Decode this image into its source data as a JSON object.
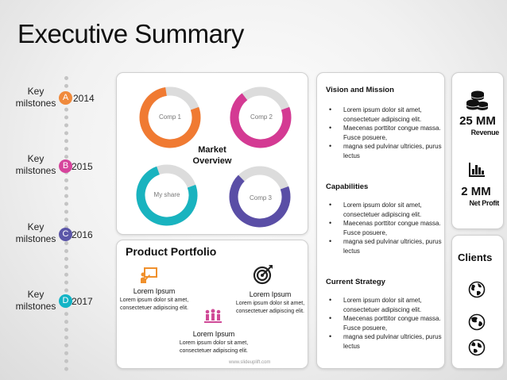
{
  "title": "Executive Summary",
  "milestones": [
    {
      "label": "Key milstones",
      "letter": "A",
      "year": "2014",
      "color": "#f08a3c"
    },
    {
      "label": "Key milstones",
      "letter": "B",
      "year": "2015",
      "color": "#d6449c"
    },
    {
      "label": "Key milstones",
      "letter": "C",
      "year": "2016",
      "color": "#5b56a8"
    },
    {
      "label": "Key milstones",
      "letter": "D",
      "year": "2017",
      "color": "#13b4c6"
    }
  ],
  "market": {
    "title": "Market Overview",
    "donuts": [
      {
        "label": "Comp 1",
        "color": "#f07a32",
        "share": 0.78
      },
      {
        "label": "Comp 2",
        "color": "#d43a93",
        "share": 0.7
      },
      {
        "label": "My share",
        "color": "#19b3bf",
        "share": 0.75
      },
      {
        "label": "Comp 3",
        "color": "#5a4ea6",
        "share": 0.68
      }
    ]
  },
  "portfolio": {
    "title": "Product Portfolio",
    "items": [
      {
        "name": "Lorem Ipsum",
        "desc": "Lorem ipsum dolor sit amet, consectetuer adipiscing elit.",
        "icon": "presentation-icon"
      },
      {
        "name": "Lorem Ipsum",
        "desc": "Lorem ipsum dolor sit amet, consectetuer adipiscing elit.",
        "icon": "target-icon"
      },
      {
        "name": "Lorem Ipsum",
        "desc": "Lorem ipsum dolor sit amet, consectetuer adipiscing elit.",
        "icon": "team-icon"
      }
    ],
    "watermark": "www.slideuplift.com"
  },
  "sections": [
    {
      "title": "Vision and Mission",
      "bullets": [
        "Lorem ipsum dolor sit amet, consectetuer adipiscing elit.",
        " Maecenas porttitor congue massa. Fusce posuere,",
        "magna sed pulvinar ultricies, purus lectus"
      ]
    },
    {
      "title": "Capabilities",
      "bullets": [
        "Lorem ipsum dolor sit amet, consectetuer adipiscing elit.",
        " Maecenas porttitor congue massa. Fusce posuere,",
        "magna sed pulvinar ultricies, purus lectus"
      ]
    },
    {
      "title": "Current Strategy",
      "bullets": [
        "Lorem ipsum dolor sit amet, consectetuer adipiscing elit.",
        " Maecenas porttitor congue massa. Fusce posuere,",
        "magna sed pulvinar ultricies, purus lectus"
      ]
    }
  ],
  "stats": [
    {
      "value": "25 MM",
      "label": "Revenue",
      "icon": "coins-icon"
    },
    {
      "value": "2 MM",
      "label": "Net Profit",
      "icon": "bar-chart-icon"
    }
  ],
  "clients": {
    "title": "Clients",
    "icons": [
      "globe-icon",
      "globe-icon",
      "globe-icon"
    ]
  }
}
